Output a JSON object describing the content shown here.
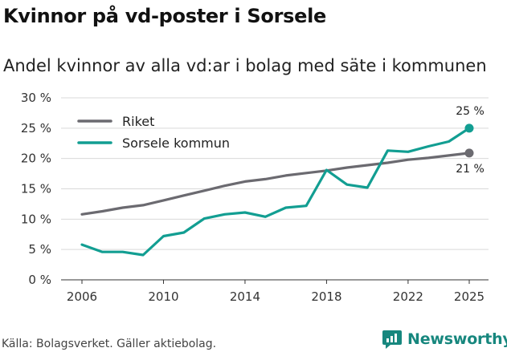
{
  "title": "Kvinnor på vd-poster i Sorsele",
  "subtitle": "Andel kvinnor av alla vd:ar i bolag med säte i kommunen",
  "source": "Källa: Bolagsverket. Gäller aktiebolag.",
  "brand": {
    "name": "Newsworthy",
    "icon": "newsworthy-logo-icon",
    "color": "#17877e"
  },
  "colors": {
    "riket": "#6b6a70",
    "sorsele": "#129e92",
    "grid": "#d9d9d9",
    "axis": "#333333"
  },
  "chart_data": {
    "type": "line",
    "title": "Kvinnor på vd-poster i Sorsele",
    "subtitle": "Andel kvinnor av alla vd:ar i bolag med säte i kommunen",
    "xlabel": "",
    "ylabel": "",
    "x": [
      2006,
      2007,
      2008,
      2009,
      2010,
      2011,
      2012,
      2013,
      2014,
      2015,
      2016,
      2017,
      2018,
      2019,
      2020,
      2021,
      2022,
      2023,
      2024,
      2025
    ],
    "xlim": [
      2006,
      2025
    ],
    "ylim": [
      0,
      30
    ],
    "xticks": [
      2006,
      2010,
      2014,
      2018,
      2022,
      2025
    ],
    "xtick_labels": [
      "2006",
      "2010",
      "2014",
      "2018",
      "2022",
      "2025"
    ],
    "yticks": [
      0,
      5,
      10,
      15,
      20,
      25,
      30
    ],
    "ytick_labels": [
      "0 %",
      "5 %",
      "10 %",
      "15 %",
      "20 %",
      "25 %",
      "30 %"
    ],
    "grid": true,
    "legend_position": "top-left",
    "series": [
      {
        "name": "Riket",
        "color": "#6b6a70",
        "values": [
          10.8,
          11.3,
          11.9,
          12.3,
          13.1,
          13.9,
          14.7,
          15.5,
          16.2,
          16.6,
          17.2,
          17.6,
          18.0,
          18.5,
          18.9,
          19.3,
          19.8,
          20.1,
          20.5,
          20.9
        ],
        "end_label": "21 %"
      },
      {
        "name": "Sorsele kommun",
        "color": "#129e92",
        "values": [
          5.8,
          4.6,
          4.6,
          4.1,
          7.2,
          7.8,
          10.1,
          10.8,
          11.1,
          10.4,
          11.9,
          12.2,
          18.1,
          15.7,
          15.2,
          21.3,
          21.1,
          22.0,
          22.8,
          25.0
        ],
        "end_label": "25 %"
      }
    ]
  }
}
